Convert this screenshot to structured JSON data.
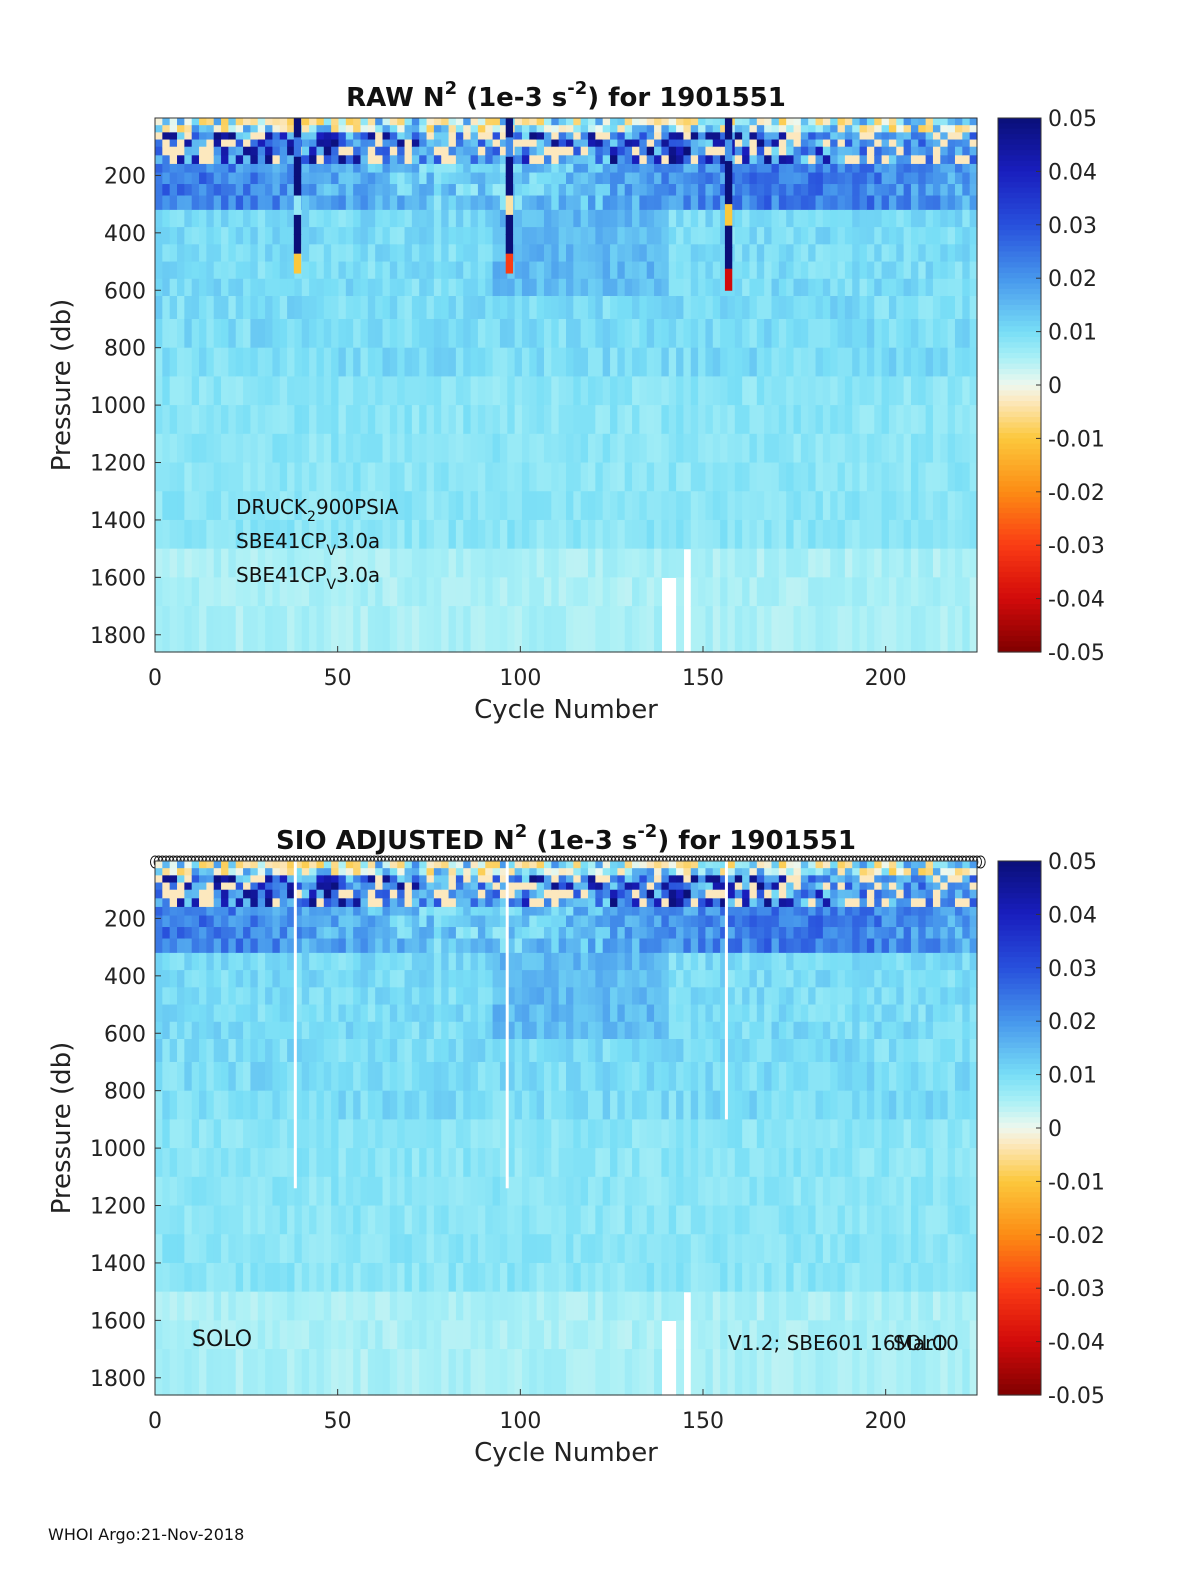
{
  "colors": {
    "ocean_base": "#c6f1f6",
    "deep_base": "#d7f8f6",
    "surface_neg": "#fbe7c3",
    "strong_pos": "#13208f",
    "mid_pos": "#3f6be0",
    "light_pos": "#8fd0f4"
  },
  "chart_data": [
    {
      "type": "heatmap",
      "title": "RAW N² (1e-3 s⁻²) for 1901551",
      "title_parts": {
        "pre": "RAW N",
        "sup1": "2",
        "mid": " (1e-3 s",
        "sup2": "-2",
        "post": ") for 1901551"
      },
      "xlabel": "Cycle Number",
      "ylabel": "Pressure (db)",
      "xlim": [
        0,
        225
      ],
      "ylim": [
        1860,
        0
      ],
      "xticks": [
        "0",
        "50",
        "100",
        "150",
        "200"
      ],
      "xtick_values": [
        0,
        50,
        100,
        150,
        200
      ],
      "yticks": [
        "200",
        "400",
        "600",
        "800",
        "1000",
        "1200",
        "1400",
        "1600",
        "1800"
      ],
      "ytick_values": [
        200,
        400,
        600,
        800,
        1000,
        1200,
        1400,
        1600,
        1800
      ],
      "colorbar": {
        "labels": [
          "0.05",
          "0.04",
          "0.03",
          "0.02",
          "0.01",
          "0",
          "-0.01",
          "-0.02",
          "-0.03",
          "-0.04",
          "-0.05"
        ],
        "values": [
          0.05,
          0.04,
          0.03,
          0.02,
          0.01,
          0,
          -0.01,
          -0.02,
          -0.03,
          -0.04,
          -0.05
        ]
      },
      "annotations": [
        {
          "base": "DRUCK",
          "sub": "2",
          "rest": "900PSIA"
        },
        {
          "base": "SBE41CP",
          "sub": "V",
          "rest": "3.0a"
        },
        {
          "base": "SBE41CP",
          "sub": "V",
          "rest": "3.0a"
        }
      ],
      "anomaly_profiles": [
        {
          "cycle": 38,
          "max_pressure": 540,
          "color_range": [
            -0.01,
            0.05
          ]
        },
        {
          "cycle": 96,
          "max_pressure": 540,
          "color_range": [
            -0.03,
            0.05
          ]
        },
        {
          "cycle": 156,
          "max_pressure": 600,
          "color_range": [
            -0.04,
            0.05
          ]
        }
      ],
      "missing": [
        {
          "cycle_start": 138,
          "cycle_end": 141,
          "min_pressure": 1630
        },
        {
          "cycle_start": 143,
          "cycle_end": 145,
          "min_pressure": 1570
        }
      ]
    },
    {
      "type": "heatmap",
      "title": "SIO ADJUSTED N² (1e-3 s⁻²) for 1901551",
      "title_parts": {
        "pre": "SIO  ADJUSTED N",
        "sup1": "2",
        "mid": " (1e-3 s",
        "sup2": "-2",
        "post": ") for 1901551"
      },
      "xlabel": "Cycle Number",
      "ylabel": "Pressure (db)",
      "xlim": [
        0,
        225
      ],
      "ylim": [
        1860,
        0
      ],
      "xticks": [
        "0",
        "50",
        "100",
        "150",
        "200"
      ],
      "xtick_values": [
        0,
        50,
        100,
        150,
        200
      ],
      "yticks": [
        "200",
        "400",
        "600",
        "800",
        "1000",
        "1200",
        "1400",
        "1600",
        "1800"
      ],
      "ytick_values": [
        200,
        400,
        600,
        800,
        1000,
        1200,
        1400,
        1600,
        1800
      ],
      "colorbar": {
        "labels": [
          "0.05",
          "0.04",
          "0.03",
          "0.02",
          "0.01",
          "0",
          "-0.01",
          "-0.02",
          "-0.03",
          "-0.04",
          "-0.05"
        ],
        "values": [
          0.05,
          0.04,
          0.03,
          0.02,
          0.01,
          0,
          -0.01,
          -0.02,
          -0.03,
          -0.04,
          -0.05
        ]
      },
      "annotation_left": "SOLO",
      "annotation_right_a": "V1.2; SBE601 16Mar10",
      "annotation_right_b": "SOLO",
      "flagged_cycles_note": "cycle markers along top axis",
      "blanked_profiles": [
        {
          "cycle": 38,
          "max_pressure": 1140
        },
        {
          "cycle": 96,
          "max_pressure": 1140
        },
        {
          "cycle": 156,
          "max_pressure": 900
        }
      ],
      "missing": [
        {
          "cycle_start": 138,
          "cycle_end": 141,
          "min_pressure": 1630
        },
        {
          "cycle_start": 143,
          "cycle_end": 145,
          "min_pressure": 1570
        }
      ]
    }
  ],
  "footer": "WHOI Argo:21-Nov-2018"
}
